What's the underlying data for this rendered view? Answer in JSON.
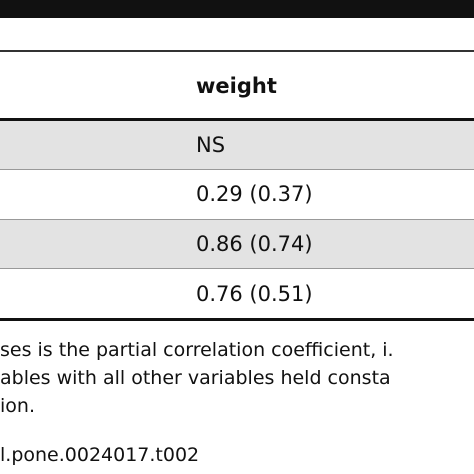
{
  "table": {
    "header": [
      "weight"
    ],
    "rows": [
      [
        "NS"
      ],
      [
        "0.29 (0.37)"
      ],
      [
        "0.86 (0.74)"
      ],
      [
        "0.76 (0.51)"
      ]
    ]
  },
  "footnote": [
    "ses is the partial correlation coefficient, i.",
    "ables with all other variables held consta",
    "ion."
  ],
  "doi": "l.pone.0024017.t002"
}
